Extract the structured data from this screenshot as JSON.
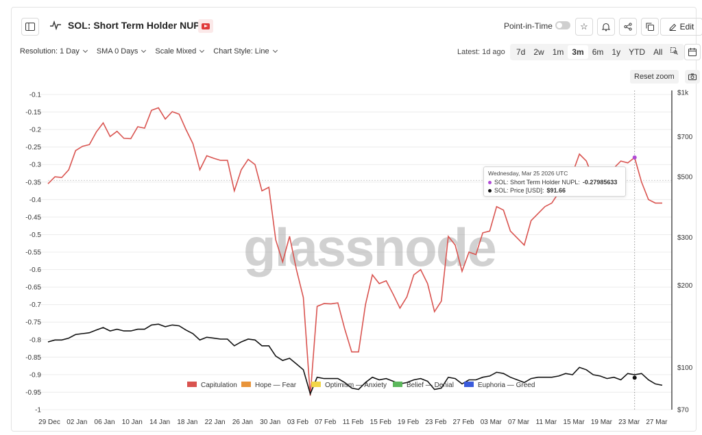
{
  "header": {
    "title": "SOL: Short Term Holder NUPL",
    "point_in_time_label": "Point-in-Time",
    "edit_label": "Edit"
  },
  "toolbar": {
    "resolution": "Resolution: 1 Day",
    "sma": "SMA 0 Days",
    "scale": "Scale Mixed",
    "chart_style": "Chart Style: Line",
    "latest": "Latest: 1d ago",
    "ranges": [
      "7d",
      "2w",
      "1m",
      "3m",
      "6m",
      "1y",
      "YTD",
      "All"
    ],
    "active_range": "3m",
    "reset_zoom": "Reset zoom"
  },
  "watermark": "glassnode",
  "tooltip": {
    "date": "Wednesday, Mar 25 2026 UTC",
    "nupl_label": "SOL: Short Term Holder NUPL:",
    "nupl_value": "-0.27985633",
    "price_label": "SOL: Price [USD]:",
    "price_value": "$91.66"
  },
  "chart_data": {
    "type": "line",
    "x_ticks": [
      "29 Dec",
      "02 Jan",
      "06 Jan",
      "10 Jan",
      "14 Jan",
      "18 Jan",
      "22 Jan",
      "26 Jan",
      "30 Jan",
      "03 Feb",
      "07 Feb",
      "11 Feb",
      "15 Feb",
      "19 Feb",
      "23 Feb",
      "27 Feb",
      "03 Mar",
      "07 Mar",
      "11 Mar",
      "15 Mar",
      "19 Mar",
      "23 Mar",
      "27 Mar"
    ],
    "y_left_ticks": [
      "-0.1",
      "-0.15",
      "-0.2",
      "-0.25",
      "-0.3",
      "-0.35",
      "-0.4",
      "-0.45",
      "-0.5",
      "-0.55",
      "-0.6",
      "-0.65",
      "-0.7",
      "-0.75",
      "-0.8",
      "-0.85",
      "-0.9",
      "-0.95",
      "-1"
    ],
    "y_left_range": [
      -1,
      -0.1
    ],
    "y_right_ticks": [
      "$1k",
      "$700",
      "$500",
      "$300",
      "$200",
      "$100",
      "$70"
    ],
    "y_right_scale": "log",
    "y_right_range": [
      70,
      1000
    ],
    "series": [
      {
        "name": "SOL: Short Term Holder NUPL",
        "color": "#d9534f",
        "axis": "left",
        "values": [
          -0.355,
          -0.335,
          -0.337,
          -0.315,
          -0.26,
          -0.248,
          -0.243,
          -0.207,
          -0.181,
          -0.22,
          -0.205,
          -0.225,
          -0.226,
          -0.192,
          -0.196,
          -0.145,
          -0.138,
          -0.17,
          -0.149,
          -0.156,
          -0.2,
          -0.24,
          -0.315,
          -0.275,
          -0.282,
          -0.288,
          -0.288,
          -0.375,
          -0.315,
          -0.285,
          -0.3,
          -0.375,
          -0.365,
          -0.515,
          -0.578,
          -0.505,
          -0.6,
          -0.68,
          -0.96,
          -0.705,
          -0.697,
          -0.698,
          -0.695,
          -0.77,
          -0.835,
          -0.835,
          -0.7,
          -0.615,
          -0.64,
          -0.632,
          -0.67,
          -0.71,
          -0.678,
          -0.615,
          -0.6,
          -0.64,
          -0.72,
          -0.69,
          -0.505,
          -0.53,
          -0.605,
          -0.55,
          -0.557,
          -0.495,
          -0.49,
          -0.42,
          -0.43,
          -0.49,
          -0.51,
          -0.53,
          -0.46,
          -0.44,
          -0.42,
          -0.41,
          -0.38,
          -0.33,
          -0.325,
          -0.27,
          -0.29,
          -0.34,
          -0.34,
          -0.345,
          -0.31,
          -0.29,
          -0.295,
          -0.28,
          -0.35,
          -0.4,
          -0.41,
          -0.41
        ]
      },
      {
        "name": "SOL: Price [USD]",
        "color": "#111111",
        "axis": "right",
        "values": [
          124,
          126,
          126,
          128,
          132,
          133,
          134,
          137,
          140,
          136,
          138,
          136,
          136,
          138,
          138,
          143,
          144,
          141,
          143,
          142,
          137,
          133,
          126,
          129,
          128,
          127,
          127,
          120,
          124,
          127,
          126,
          120,
          120,
          110,
          106,
          108,
          103,
          98,
          80,
          92,
          91,
          91,
          91,
          88,
          84,
          83,
          88,
          92,
          90,
          91,
          89,
          87,
          88,
          90,
          91,
          89,
          83,
          84,
          92,
          91,
          87,
          90,
          90,
          92,
          93,
          96,
          95,
          92,
          90,
          88,
          91,
          92,
          92,
          92,
          93,
          95,
          94,
          100,
          98,
          94,
          93,
          91,
          92,
          90,
          95,
          94,
          95,
          90,
          87,
          86
        ]
      }
    ],
    "legend": [
      "Capitulation",
      "Hope — Fear",
      "Optimism — Anxiety",
      "Belief — Denial",
      "Euphoria — Greed"
    ],
    "legend_colors": [
      "#d9534f",
      "#e8943a",
      "#f2d648",
      "#5cb85c",
      "#3b5bdb"
    ],
    "legend_placement": "bottom",
    "highlight_point": {
      "date": "Mar 25 2026",
      "nupl": -0.27985633,
      "price": 91.66
    }
  }
}
